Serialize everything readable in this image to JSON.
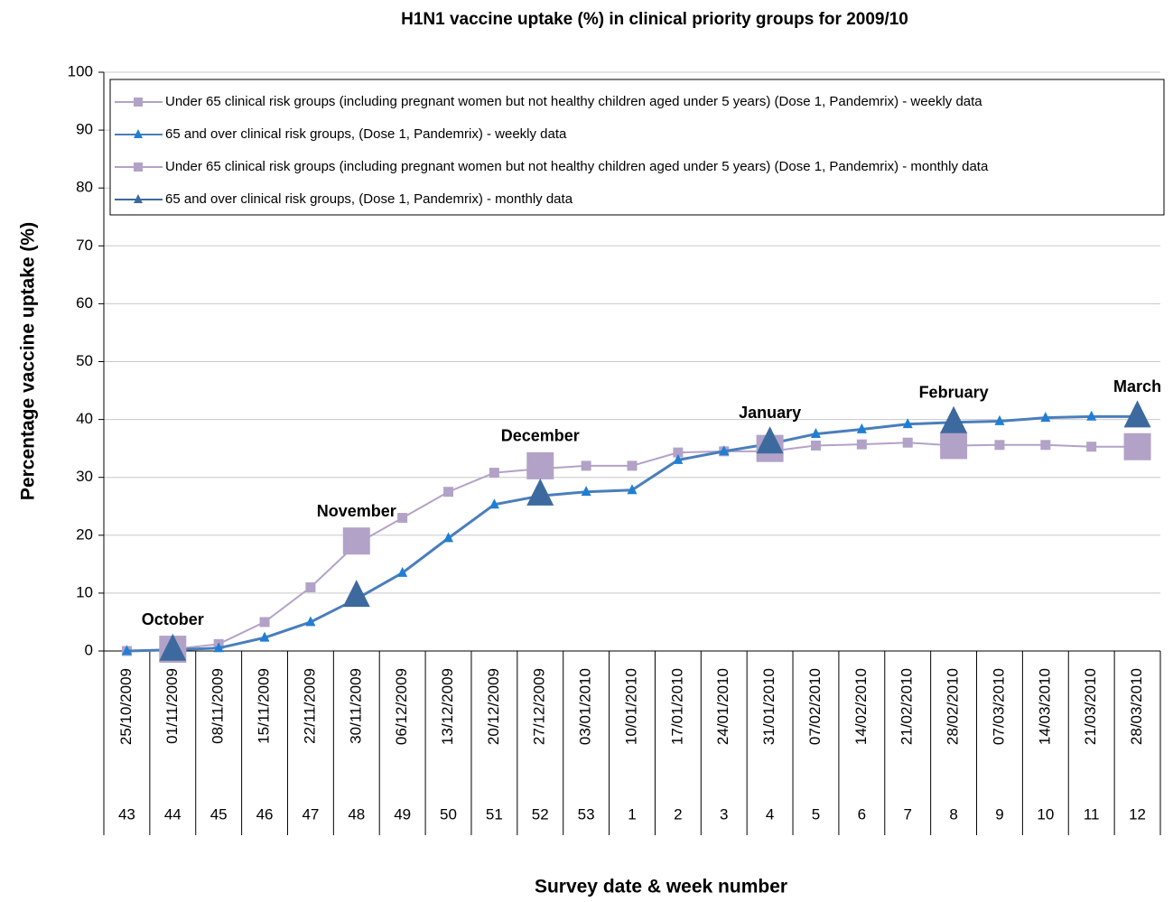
{
  "chart_data": {
    "type": "line",
    "title": "H1N1 vaccine uptake (%) in clinical priority groups for 2009/10",
    "y_label": "Percentage vaccine uptake (%)",
    "x_label": "Survey date & week number",
    "categories": [
      "25/10/2009",
      "01/11/2009",
      "08/11/2009",
      "15/11/2009",
      "22/11/2009",
      "30/11/2009",
      "06/12/2009",
      "13/12/2009",
      "20/12/2009",
      "27/12/2009",
      "03/01/2010",
      "10/01/2010",
      "17/01/2010",
      "24/01/2010",
      "31/01/2010",
      "07/02/2010",
      "14/02/2010",
      "21/02/2010",
      "28/02/2010",
      "07/03/2010",
      "14/03/2010",
      "21/03/2010",
      "28/03/2010"
    ],
    "week_numbers": [
      "43",
      "44",
      "45",
      "46",
      "47",
      "48",
      "49",
      "50",
      "51",
      "52",
      "53",
      "1",
      "2",
      "3",
      "4",
      "5",
      "6",
      "7",
      "8",
      "9",
      "10",
      "11",
      "12"
    ],
    "month_labels": [
      null,
      "October",
      null,
      null,
      null,
      "November",
      null,
      null,
      null,
      "December",
      null,
      null,
      null,
      null,
      "January",
      null,
      null,
      null,
      "February",
      null,
      null,
      null,
      "March"
    ],
    "series": [
      {
        "name": "Under 65 clinical risk groups (including pregnant women but not healthy children aged under 5 years) (Dose 1, Pandemrix) - weekly data",
        "color": "#b3a2c7",
        "marker": "square",
        "values": [
          0,
          0.3,
          1.2,
          5,
          11,
          18.5,
          23,
          27.5,
          30.8,
          31.5,
          32,
          32,
          34.3,
          34.5,
          34.5,
          35.5,
          35.7,
          36,
          35.5,
          35.6,
          35.6,
          35.3,
          35.3
        ]
      },
      {
        "name": "65 and over clinical risk groups, (Dose 1, Pandemrix) - weekly data",
        "color": "#4a7ebb",
        "marker_color": "#1f7fd4",
        "marker": "triangle",
        "values": [
          0,
          0.2,
          0.5,
          2.3,
          5,
          9,
          13.5,
          19.5,
          25.3,
          26.8,
          27.5,
          27.8,
          33,
          34.5,
          35.8,
          37.5,
          38.3,
          39.2,
          39.5,
          39.7,
          40.3,
          40.5,
          40.5
        ]
      },
      {
        "name": "Under 65 clinical risk groups (including pregnant women but not healthy children aged under 5 years) (Dose 1, Pandemrix) - monthly data",
        "color": "#b3a2c7",
        "marker": "square",
        "big": true,
        "values": [
          null,
          0.3,
          null,
          null,
          null,
          19,
          null,
          null,
          null,
          32,
          null,
          null,
          null,
          null,
          35,
          null,
          null,
          null,
          35.5,
          null,
          null,
          null,
          35.3
        ]
      },
      {
        "name": "65 and over clinical risk groups, (Dose 1, Pandemrix) - monthly data",
        "color": "#3d6a9e",
        "marker": "triangle",
        "big": true,
        "values": [
          null,
          0.2,
          null,
          null,
          null,
          9.5,
          null,
          null,
          null,
          27,
          null,
          null,
          null,
          null,
          36,
          null,
          null,
          null,
          39.5,
          null,
          null,
          null,
          40.5
        ]
      }
    ],
    "ylim": [
      0,
      100
    ],
    "yticks": [
      0,
      10,
      20,
      30,
      40,
      50,
      60,
      70,
      80,
      90,
      100
    ],
    "grid": true
  }
}
